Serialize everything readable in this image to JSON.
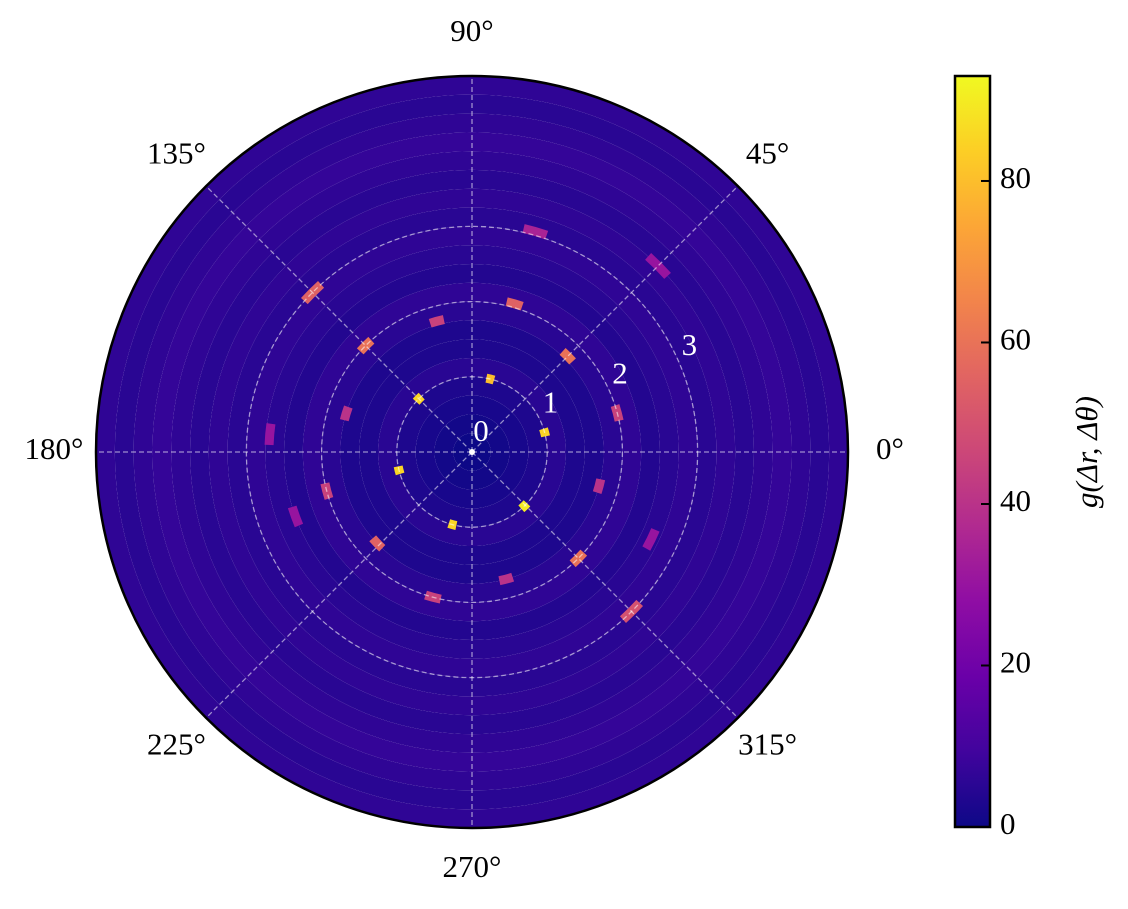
{
  "chart_data": {
    "type": "polar_heatmap",
    "rlim": [
      0,
      5
    ],
    "r_ticks": [
      0,
      1,
      2,
      3
    ],
    "theta_ticks": [
      {
        "value": 0,
        "label": "0°"
      },
      {
        "value": 45,
        "label": "45°"
      },
      {
        "value": 90,
        "label": "90°"
      },
      {
        "value": 135,
        "label": "135°"
      },
      {
        "value": 180,
        "label": "180°"
      },
      {
        "value": 225,
        "label": "225°"
      },
      {
        "value": 270,
        "label": "270°"
      },
      {
        "value": 315,
        "label": "315°"
      }
    ],
    "grid": true,
    "r_bins": [
      0,
      0.25,
      0.5,
      0.75,
      1,
      1.25,
      1.5,
      1.75,
      2,
      2.25,
      2.5,
      2.75,
      3,
      3.25,
      3.5,
      3.75,
      4,
      4.25,
      4.5,
      4.75,
      5
    ],
    "band_values": [
      0,
      1,
      2,
      3,
      5,
      3,
      3,
      5,
      6,
      4,
      5,
      6,
      5,
      6,
      5,
      6,
      7,
      6,
      5,
      6
    ],
    "spots": [
      {
        "r": 1.0,
        "theta": 15,
        "value": 85
      },
      {
        "r": 1.0,
        "theta": 76,
        "value": 80
      },
      {
        "r": 1.0,
        "theta": 135,
        "value": 85
      },
      {
        "r": 1.0,
        "theta": 194,
        "value": 85
      },
      {
        "r": 1.0,
        "theta": 255,
        "value": 85
      },
      {
        "r": 1.0,
        "theta": 314,
        "value": 90
      },
      {
        "r": 1.8,
        "theta": 45,
        "value": 60
      },
      {
        "r": 2.05,
        "theta": 74,
        "value": 55
      },
      {
        "r": 1.8,
        "theta": 105,
        "value": 45
      },
      {
        "r": 2.0,
        "theta": 135,
        "value": 60
      },
      {
        "r": 1.75,
        "theta": 163,
        "value": 40
      },
      {
        "r": 2.0,
        "theta": 195,
        "value": 45
      },
      {
        "r": 1.75,
        "theta": 224,
        "value": 55
      },
      {
        "r": 2.0,
        "theta": 255,
        "value": 45
      },
      {
        "r": 1.75,
        "theta": 285,
        "value": 40
      },
      {
        "r": 2.0,
        "theta": 315,
        "value": 60
      },
      {
        "r": 1.75,
        "theta": 345,
        "value": 40
      },
      {
        "r": 2.0,
        "theta": 15,
        "value": 45
      },
      {
        "r": 3.0,
        "theta": 135,
        "value": 55
      },
      {
        "r": 3.0,
        "theta": 315,
        "value": 50
      },
      {
        "r": 3.5,
        "theta": 45,
        "value": 30
      },
      {
        "r": 3.05,
        "theta": 74,
        "value": 35
      },
      {
        "r": 2.7,
        "theta": 175,
        "value": 30
      },
      {
        "r": 2.5,
        "theta": 200,
        "value": 30
      },
      {
        "r": 2.65,
        "theta": 334,
        "value": 30
      }
    ],
    "colorbar": {
      "label": "g(Δr, Δθ)",
      "clim": [
        0,
        93
      ],
      "ticks": [
        0,
        20,
        40,
        60,
        80
      ],
      "colormap": "plasma"
    }
  }
}
